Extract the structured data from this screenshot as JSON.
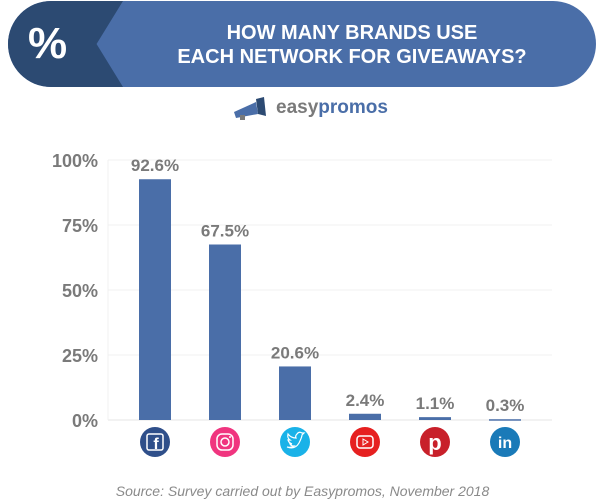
{
  "header": {
    "badge": "%",
    "title_line1": "HOW MANY BRANDS USE",
    "title_line2": "EACH NETWORK FOR GIVEAWAYS?"
  },
  "logo": {
    "part1": "easy",
    "part2": "promos"
  },
  "chart_data": {
    "type": "bar",
    "title": "HOW MANY BRANDS USE EACH NETWORK FOR GIVEAWAYS?",
    "categories": [
      "Facebook",
      "Instagram",
      "Twitter",
      "YouTube",
      "Pinterest",
      "LinkedIn"
    ],
    "values": [
      92.6,
      67.5,
      20.6,
      2.4,
      1.1,
      0.3
    ],
    "data_labels": [
      "92.6%",
      "67.5%",
      "20.6%",
      "2.4%",
      "1.1%",
      "0.3%"
    ],
    "yticks": [
      "0%",
      "25%",
      "50%",
      "75%",
      "100%"
    ],
    "ylim": [
      0,
      100
    ],
    "grid": true,
    "bar_color": "#4a6ea8",
    "icon_colors": [
      "#2f4f8a",
      "#f0357f",
      "#1ab2e8",
      "#e62020",
      "#c8202a",
      "#1a7ab8"
    ]
  },
  "source": "Source: Survey carried out by Easypromos, November 2018"
}
